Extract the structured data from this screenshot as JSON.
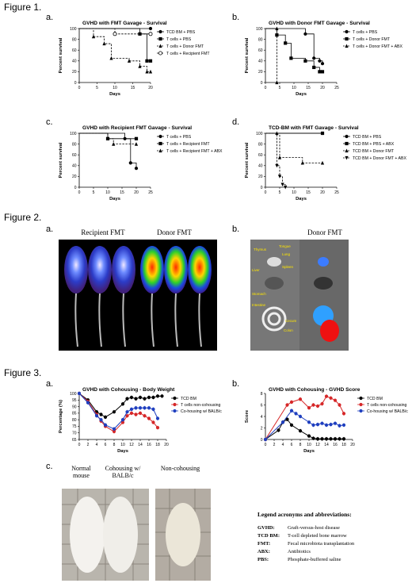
{
  "figures": {
    "fig1": "Figure 1.",
    "fig2": "Figure 2.",
    "fig3": "Figure 3."
  },
  "panels": {
    "f1a": "a.",
    "f1b": "b.",
    "f1c": "c.",
    "f1d": "d.",
    "f2a": "a.",
    "f2b": "b.",
    "f3a": "a.",
    "f3b": "b.",
    "f3c": "c."
  },
  "photos": {
    "recipient_caption": "Recipient FMT",
    "donor_caption": "Donor FMT",
    "organ_caption": "Donor FMT",
    "organ_labels": [
      "Thymus",
      "Tongue",
      "Lung",
      "Liver",
      "Spleen",
      "Stomach",
      "Intestine",
      "Cecum",
      "Colon"
    ],
    "mouse_captions": [
      "Normal mouse",
      "Cohousing w/ BALB/c",
      "Non-cohousing"
    ]
  },
  "legend": {
    "title": "Legend acronyms and abbreviations:",
    "rows": [
      {
        "abbr": "GVHD:",
        "text": "Graft-versus-host disease"
      },
      {
        "abbr": "TCD BM:",
        "text": "T-cell depleted bone marrow"
      },
      {
        "abbr": "FMT:",
        "text": "Fecal microbiota transplantation"
      },
      {
        "abbr": "ABX:",
        "text": "Antibiotics"
      },
      {
        "abbr": "PBS:",
        "text": "Phosphate-buffered saline"
      }
    ]
  },
  "chart_data": [
    {
      "id": "f1a",
      "type": "line",
      "title": "GVHD with FMT Gavage - Survival",
      "xlabel": "Days",
      "ylabel": "Percent survival",
      "xlim": [
        0,
        20
      ],
      "ylim": [
        0,
        100
      ],
      "xticks": [
        0,
        5,
        10,
        15,
        20
      ],
      "yticks": [
        0,
        20,
        40,
        60,
        80,
        100
      ],
      "legend_position": "right",
      "series": [
        {
          "name": "TCD BM + PBS",
          "marker": "circle-filled",
          "dash": false,
          "x": [
            0,
            20
          ],
          "y": [
            100,
            100
          ]
        },
        {
          "name": "T cells + PBS",
          "marker": "square",
          "dash": false,
          "x": [
            0,
            17,
            19,
            20
          ],
          "y": [
            100,
            90,
            40,
            40
          ]
        },
        {
          "name": "T cells + Donor FMT",
          "marker": "triangle",
          "dash": true,
          "x": [
            0,
            4,
            7,
            9,
            14,
            17,
            19,
            20
          ],
          "y": [
            100,
            85,
            72,
            45,
            40,
            30,
            20,
            20
          ]
        },
        {
          "name": "T cells + Recipient FMT",
          "marker": "circle-open",
          "dash": true,
          "x": [
            0,
            10,
            20
          ],
          "y": [
            100,
            90,
            90
          ]
        }
      ]
    },
    {
      "id": "f1b",
      "type": "line",
      "title": "GVHD with Donor FMT Gavage - Survival",
      "xlabel": "Days",
      "ylabel": "Percent survival",
      "xlim": [
        0,
        25
      ],
      "ylim": [
        0,
        100
      ],
      "xticks": [
        0,
        5,
        10,
        15,
        20,
        25
      ],
      "yticks": [
        0,
        20,
        40,
        60,
        80,
        100
      ],
      "legend_position": "right",
      "series": [
        {
          "name": "T cells + PBS",
          "marker": "circle-filled",
          "dash": false,
          "x": [
            0,
            14,
            17,
            19,
            20
          ],
          "y": [
            100,
            90,
            45,
            40,
            35
          ]
        },
        {
          "name": "T cells + Donor FMT",
          "marker": "square",
          "dash": false,
          "x": [
            0,
            4,
            7,
            9,
            14,
            17,
            19,
            20
          ],
          "y": [
            100,
            88,
            73,
            45,
            40,
            28,
            20,
            20
          ]
        },
        {
          "name": "T cells + Donor FMT + ABX",
          "marker": "triangle",
          "dash": true,
          "x": [
            0,
            4,
            4
          ],
          "y": [
            100,
            100,
            0
          ]
        }
      ]
    },
    {
      "id": "f1c",
      "type": "line",
      "title": "GVHD with Recipient FMT Gavage - Survival",
      "xlabel": "Days",
      "ylabel": "Percent survival",
      "xlim": [
        0,
        25
      ],
      "ylim": [
        0,
        100
      ],
      "xticks": [
        0,
        5,
        10,
        15,
        20,
        25
      ],
      "yticks": [
        0,
        20,
        40,
        60,
        80,
        100
      ],
      "legend_position": "right",
      "series": [
        {
          "name": "T cells + PBS",
          "marker": "circle-filled",
          "dash": false,
          "x": [
            0,
            16,
            18,
            20
          ],
          "y": [
            100,
            90,
            45,
            35
          ]
        },
        {
          "name": "T cells + Recipient FMT",
          "marker": "square",
          "dash": false,
          "x": [
            0,
            10,
            20
          ],
          "y": [
            100,
            90,
            90
          ]
        },
        {
          "name": "T cells + Recipient FMT + ABX",
          "marker": "triangle",
          "dash": true,
          "x": [
            0,
            10,
            12,
            20
          ],
          "y": [
            100,
            90,
            80,
            80
          ]
        }
      ]
    },
    {
      "id": "f1d",
      "type": "line",
      "title": "TCD-BM with FMT Gavage - Survival",
      "xlabel": "Days",
      "ylabel": "Percent survival",
      "xlim": [
        0,
        25
      ],
      "ylim": [
        0,
        100
      ],
      "xticks": [
        0,
        5,
        10,
        15,
        20,
        25
      ],
      "yticks": [
        0,
        20,
        40,
        60,
        80,
        100
      ],
      "legend_position": "right",
      "series": [
        {
          "name": "TCD BM + PBS",
          "marker": "circle-filled",
          "dash": false,
          "x": [
            0,
            20
          ],
          "y": [
            100,
            100
          ]
        },
        {
          "name": "TCD BM + PBS + ABX",
          "marker": "square",
          "dash": false,
          "x": [
            0,
            20
          ],
          "y": [
            100,
            100
          ]
        },
        {
          "name": "TCD BM + Donor FMT",
          "marker": "triangle",
          "dash": true,
          "x": [
            0,
            4,
            5,
            13,
            20
          ],
          "y": [
            100,
            100,
            55,
            45,
            45
          ]
        },
        {
          "name": "TCD BM + Donor FMT + ABX",
          "marker": "triangle-down",
          "dash": true,
          "x": [
            0,
            4,
            5,
            6,
            7
          ],
          "y": [
            100,
            40,
            20,
            5,
            0
          ]
        }
      ]
    },
    {
      "id": "f3a",
      "type": "line",
      "title": "GVHD with Cohousing - Body Weight",
      "xlabel": "Days",
      "ylabel": "Percentage (%)",
      "xlim": [
        0,
        20
      ],
      "ylim": [
        65,
        100
      ],
      "xticks": [
        0,
        2,
        4,
        6,
        8,
        10,
        12,
        14,
        16,
        18,
        20
      ],
      "yticks": [
        65,
        70,
        75,
        80,
        85,
        90,
        95,
        100
      ],
      "legend_position": "right",
      "series": [
        {
          "name": "TCD BM",
          "color": "#000000",
          "x": [
            0,
            2,
            4,
            5,
            6,
            8,
            10,
            11,
            12,
            13,
            14,
            15,
            16,
            17,
            18,
            19
          ],
          "y": [
            100,
            95,
            86,
            84,
            82,
            86,
            92,
            96,
            97,
            96,
            97,
            96,
            97,
            97,
            98,
            98
          ]
        },
        {
          "name": "T cells non-cohousing",
          "color": "#d62728",
          "x": [
            0,
            2,
            4,
            5,
            6,
            8,
            10,
            11,
            12,
            13,
            14,
            15,
            16,
            17,
            18
          ],
          "y": [
            100,
            94,
            84,
            79,
            75,
            71,
            78,
            83,
            85,
            84,
            85,
            83,
            81,
            78,
            74
          ]
        },
        {
          "name": "Co-housing w/ BALB/c",
          "color": "#1f3fbf",
          "x": [
            0,
            2,
            4,
            5,
            6,
            8,
            10,
            11,
            12,
            13,
            14,
            15,
            16,
            17,
            18
          ],
          "y": [
            100,
            93,
            83,
            80,
            76,
            73,
            80,
            86,
            88,
            89,
            89,
            89,
            89,
            88,
            81
          ]
        }
      ]
    },
    {
      "id": "f3b",
      "type": "line",
      "title": "GVHD with Cohousing - GVHD Score",
      "xlabel": "Days",
      "ylabel": "Score",
      "xlim": [
        0,
        20
      ],
      "ylim": [
        0,
        8
      ],
      "xticks": [
        0,
        2,
        4,
        6,
        8,
        10,
        12,
        14,
        16,
        18,
        20
      ],
      "yticks": [
        0,
        2,
        4,
        6,
        8
      ],
      "legend_position": "right",
      "series": [
        {
          "name": "TCD BM",
          "color": "#000000",
          "x": [
            0,
            3,
            4,
            5,
            6,
            8,
            10,
            11,
            12,
            13,
            14,
            15,
            16,
            17,
            18
          ],
          "y": [
            0,
            1.6,
            3,
            3.5,
            2.5,
            1.5,
            0.6,
            0.2,
            0.1,
            0.1,
            0.1,
            0.1,
            0.1,
            0.1,
            0.1
          ]
        },
        {
          "name": "T cells non-cohousing",
          "color": "#d62728",
          "x": [
            0,
            5,
            6,
            8,
            10,
            11,
            12,
            13,
            14,
            15,
            16,
            17,
            18
          ],
          "y": [
            0,
            6,
            6.5,
            7,
            5.5,
            6,
            5.8,
            6.2,
            7.5,
            7.2,
            6.8,
            6,
            4.5
          ]
        },
        {
          "name": "Co-housing w/ BALB/c",
          "color": "#1f3fbf",
          "x": [
            0,
            4,
            6,
            7,
            8,
            10,
            11,
            12,
            13,
            14,
            15,
            16,
            17,
            18
          ],
          "y": [
            0,
            3,
            5,
            4.5,
            4,
            3,
            2.5,
            2.6,
            2.8,
            2.5,
            2.6,
            2.8,
            2.4,
            2.5
          ]
        }
      ]
    }
  ]
}
